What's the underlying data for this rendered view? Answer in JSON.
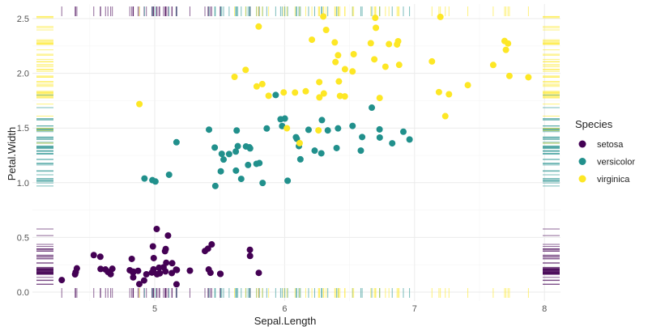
{
  "chart_data": {
    "type": "scatter",
    "xlabel": "Sepal.Length",
    "ylabel": "Petal.Width",
    "xlim": [
      4.2,
      8.0
    ],
    "ylim": [
      -0.05,
      2.55
    ],
    "x_ticks": [
      "5",
      "6",
      "7",
      "8"
    ],
    "y_ticks": [
      "0.0",
      "0.5",
      "1.0",
      "1.5",
      "2.0",
      "2.5"
    ],
    "grid": true,
    "rug": [
      "top",
      "bottom",
      "left",
      "right"
    ],
    "legend": {
      "title": "Species",
      "position": "right"
    },
    "series": [
      {
        "name": "setosa",
        "color": "#440154",
        "x": [
          5.1,
          4.9,
          4.7,
          4.6,
          5.0,
          5.4,
          4.6,
          5.0,
          4.4,
          4.9,
          5.4,
          4.8,
          4.8,
          4.3,
          5.8,
          5.7,
          5.4,
          5.1,
          5.7,
          5.1,
          5.4,
          5.1,
          4.6,
          5.1,
          4.8,
          5.0,
          5.0,
          5.2,
          5.2,
          4.7,
          4.8,
          5.4,
          5.2,
          5.5,
          4.9,
          5.0,
          5.5,
          4.9,
          4.4,
          5.1,
          5.0,
          4.5,
          4.4,
          5.0,
          5.1,
          4.8,
          5.1,
          4.6,
          5.3,
          5.0
        ],
        "y": [
          0.2,
          0.2,
          0.2,
          0.2,
          0.2,
          0.4,
          0.3,
          0.2,
          0.2,
          0.1,
          0.2,
          0.2,
          0.1,
          0.1,
          0.2,
          0.4,
          0.4,
          0.3,
          0.3,
          0.3,
          0.2,
          0.4,
          0.2,
          0.5,
          0.2,
          0.2,
          0.4,
          0.2,
          0.2,
          0.2,
          0.2,
          0.4,
          0.1,
          0.2,
          0.2,
          0.2,
          0.2,
          0.1,
          0.2,
          0.2,
          0.3,
          0.3,
          0.2,
          0.6,
          0.4,
          0.3,
          0.2,
          0.2,
          0.2,
          0.2
        ]
      },
      {
        "name": "versicolor",
        "color": "#21908C",
        "x": [
          7.0,
          6.4,
          6.9,
          5.5,
          6.5,
          5.7,
          6.3,
          4.9,
          6.6,
          5.2,
          5.0,
          5.9,
          6.0,
          6.1,
          5.6,
          6.7,
          5.6,
          5.8,
          6.2,
          5.6,
          5.9,
          6.1,
          6.3,
          6.1,
          6.4,
          6.6,
          6.8,
          6.7,
          6.0,
          5.7,
          5.5,
          5.5,
          5.8,
          6.0,
          5.4,
          6.0,
          6.7,
          6.3,
          5.6,
          5.5,
          5.5,
          6.1,
          5.8,
          5.0,
          5.6,
          5.7,
          5.7,
          6.2,
          5.1,
          5.7
        ],
        "y": [
          1.4,
          1.5,
          1.5,
          1.3,
          1.5,
          1.3,
          1.6,
          1.0,
          1.3,
          1.4,
          1.0,
          1.5,
          1.0,
          1.4,
          1.3,
          1.4,
          1.5,
          1.0,
          1.5,
          1.1,
          1.8,
          1.3,
          1.5,
          1.2,
          1.3,
          1.4,
          1.4,
          1.7,
          1.5,
          1.0,
          1.1,
          1.0,
          1.2,
          1.6,
          1.5,
          1.6,
          1.5,
          1.3,
          1.3,
          1.3,
          1.2,
          1.4,
          1.2,
          1.0,
          1.3,
          1.2,
          1.3,
          1.3,
          1.1,
          1.3
        ]
      },
      {
        "name": "virginica",
        "color": "#FDE725",
        "x": [
          6.3,
          5.8,
          7.1,
          6.3,
          6.5,
          7.6,
          4.9,
          7.3,
          6.7,
          7.2,
          6.5,
          6.4,
          6.8,
          5.7,
          5.8,
          6.4,
          6.5,
          7.7,
          7.7,
          6.0,
          6.9,
          5.6,
          7.7,
          6.3,
          6.7,
          7.2,
          6.2,
          6.1,
          6.4,
          7.2,
          7.4,
          7.9,
          6.4,
          6.3,
          6.1,
          7.7,
          6.3,
          6.4,
          6.0,
          6.9,
          6.7,
          6.9,
          5.8,
          6.8,
          6.7,
          6.7,
          6.3,
          6.5,
          6.2,
          5.9
        ],
        "y": [
          2.5,
          1.9,
          2.1,
          1.8,
          2.2,
          2.1,
          1.7,
          1.8,
          1.8,
          2.5,
          2.0,
          1.9,
          2.1,
          2.0,
          2.4,
          2.3,
          1.8,
          2.2,
          2.3,
          1.5,
          2.3,
          2.0,
          2.0,
          1.8,
          2.1,
          1.8,
          1.8,
          1.8,
          2.1,
          1.6,
          1.9,
          2.0,
          2.2,
          1.5,
          1.4,
          2.3,
          2.4,
          1.8,
          1.8,
          2.1,
          2.4,
          2.3,
          1.9,
          2.3,
          2.5,
          2.3,
          1.9,
          2.0,
          2.3,
          1.8
        ]
      }
    ]
  }
}
